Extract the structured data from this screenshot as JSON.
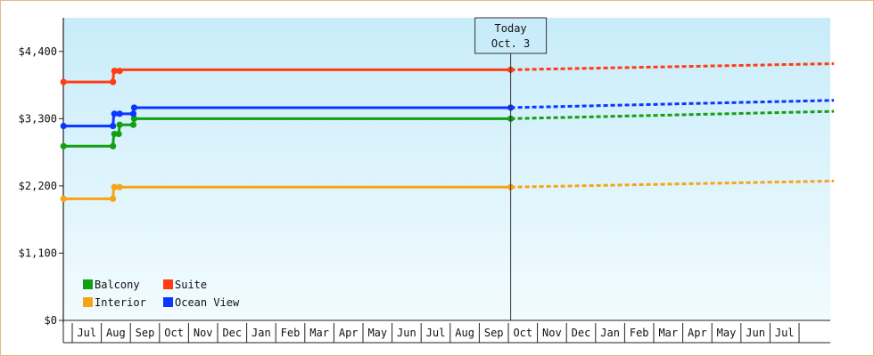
{
  "chart_data": {
    "type": "line",
    "title": "",
    "xlabel": "",
    "ylabel": "",
    "ylim": [
      0,
      4950
    ],
    "yticks": [
      {
        "value": 0,
        "label": "$0"
      },
      {
        "value": 1100,
        "label": "$1,100"
      },
      {
        "value": 2200,
        "label": "$2,200"
      },
      {
        "value": 3300,
        "label": "$3,300"
      },
      {
        "value": 4400,
        "label": "$4,400"
      }
    ],
    "months": [
      "Jul",
      "Aug",
      "Sep",
      "Oct",
      "Nov",
      "Dec",
      "Jan",
      "Feb",
      "Mar",
      "Apr",
      "May",
      "Jun",
      "Jul",
      "Aug",
      "Sep",
      "Oct",
      "Nov",
      "Dec",
      "Jan",
      "Feb",
      "Mar",
      "Apr",
      "May",
      "Jun",
      "Jul"
    ],
    "today": {
      "line1": "Today",
      "line2": "Oct. 3",
      "x": 15.08
    },
    "x_range": [
      -0.3,
      26.2
    ],
    "grid": false,
    "legend_placement": "bottom-left",
    "series": [
      {
        "name": "Balcony",
        "color": "#12a012",
        "points": [
          [
            -0.3,
            2850
          ],
          [
            1.4,
            2850
          ],
          [
            1.43,
            3050
          ],
          [
            1.6,
            3050
          ],
          [
            1.63,
            3200
          ],
          [
            2.1,
            3200
          ],
          [
            2.13,
            3300
          ],
          [
            15.08,
            3300
          ]
        ],
        "markers": [
          [
            -0.3,
            2850
          ],
          [
            1.4,
            2850
          ],
          [
            1.45,
            3050
          ],
          [
            1.6,
            3050
          ],
          [
            1.63,
            3200
          ],
          [
            2.1,
            3200
          ],
          [
            2.13,
            3300
          ],
          [
            15.08,
            3300
          ]
        ],
        "forecast": [
          [
            15.08,
            3300
          ],
          [
            26.2,
            3420
          ]
        ]
      },
      {
        "name": "Suite",
        "color": "#ff3c14",
        "points": [
          [
            -0.3,
            3900
          ],
          [
            1.4,
            3900
          ],
          [
            1.43,
            4100
          ],
          [
            15.08,
            4100
          ]
        ],
        "markers": [
          [
            -0.3,
            3900
          ],
          [
            1.4,
            3900
          ],
          [
            1.45,
            4080
          ],
          [
            1.63,
            4080
          ],
          [
            15.08,
            4100
          ]
        ],
        "forecast": [
          [
            15.08,
            4100
          ],
          [
            26.2,
            4200
          ]
        ]
      },
      {
        "name": "Interior",
        "color": "#f5a514",
        "points": [
          [
            -0.3,
            1990
          ],
          [
            1.4,
            1990
          ],
          [
            1.43,
            2180
          ],
          [
            15.08,
            2180
          ]
        ],
        "markers": [
          [
            -0.3,
            1990
          ],
          [
            1.4,
            1990
          ],
          [
            1.45,
            2180
          ],
          [
            1.63,
            2180
          ],
          [
            15.08,
            2180
          ]
        ],
        "forecast": [
          [
            15.08,
            2180
          ],
          [
            26.2,
            2280
          ]
        ]
      },
      {
        "name": "Ocean View",
        "color": "#0a37ff",
        "points": [
          [
            -0.3,
            3180
          ],
          [
            1.4,
            3180
          ],
          [
            1.43,
            3380
          ],
          [
            2.1,
            3380
          ],
          [
            2.13,
            3480
          ],
          [
            15.08,
            3480
          ]
        ],
        "markers": [
          [
            -0.3,
            3180
          ],
          [
            1.4,
            3180
          ],
          [
            1.45,
            3380
          ],
          [
            1.63,
            3380
          ],
          [
            2.1,
            3380
          ],
          [
            2.13,
            3480
          ],
          [
            15.08,
            3480
          ]
        ],
        "forecast": [
          [
            15.08,
            3480
          ],
          [
            26.2,
            3600
          ]
        ]
      }
    ]
  }
}
